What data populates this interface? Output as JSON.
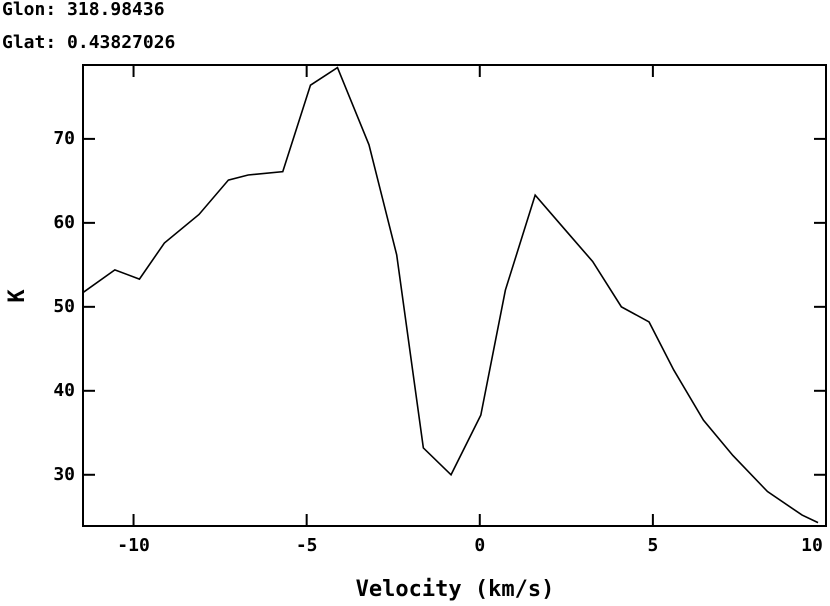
{
  "header": {
    "glon": "Glon: 318.98436",
    "glat": "Glat: 0.43827026"
  },
  "chart_data": {
    "type": "line",
    "xlabel": "Velocity (km/s)",
    "ylabel": "K",
    "x": [
      -11.46,
      -10.54,
      -9.83,
      -9.11,
      -8.11,
      -7.26,
      -6.69,
      -5.69,
      -4.89,
      -4.11,
      -3.2,
      -2.4,
      -1.63,
      -0.83,
      0.03,
      0.74,
      1.6,
      2.46,
      3.26,
      4.09,
      4.89,
      5.6,
      6.46,
      7.31,
      8.31,
      9.31,
      9.77
    ],
    "values": [
      51.7,
      54.4,
      53.3,
      57.6,
      61.0,
      65.1,
      65.7,
      66.1,
      76.4,
      78.5,
      69.3,
      56.2,
      33.2,
      30.0,
      37.1,
      52.0,
      63.3,
      59.2,
      55.4,
      50.0,
      48.2,
      42.5,
      36.5,
      32.3,
      28.0,
      25.2,
      24.3
    ],
    "color": "#000000",
    "xlim": [
      -11.46,
      10
    ],
    "ylim": [
      23.9,
      78.8
    ],
    "xticks": [
      -10,
      -5,
      0,
      5,
      10
    ],
    "yticks": [
      30,
      40,
      50,
      60,
      70
    ]
  }
}
